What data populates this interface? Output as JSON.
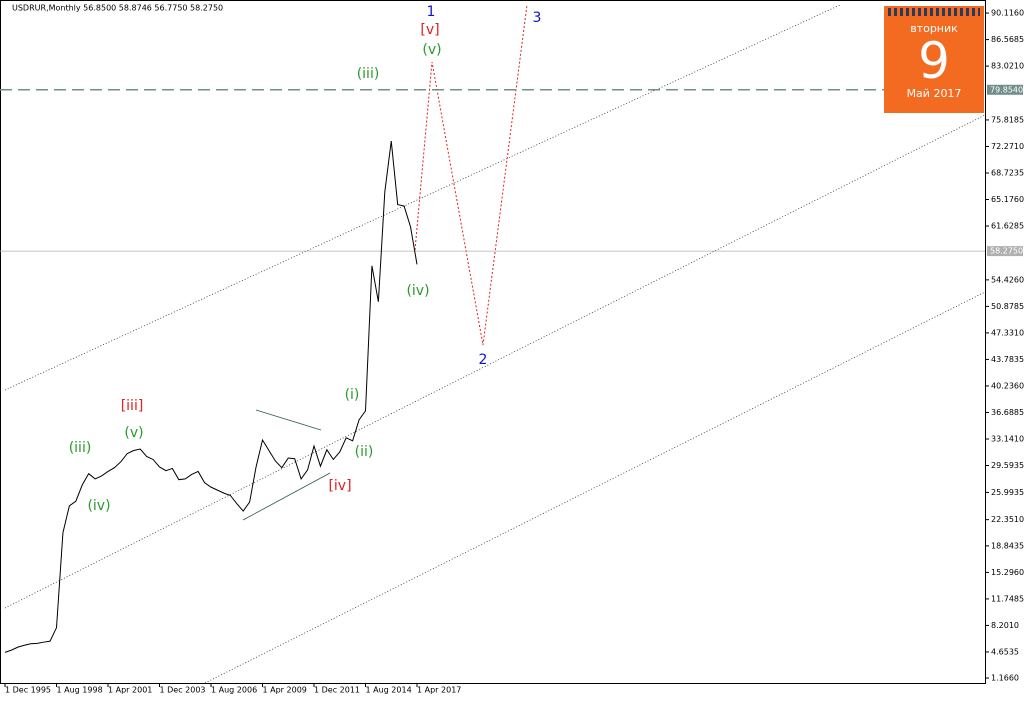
{
  "chart_data": {
    "type": "line",
    "title": "USDRUR,Monthly  56.8500 58.8746 56.7750 58.2750",
    "color": "#000000",
    "categories": [
      "1 Dec 1995",
      null,
      null,
      null,
      null,
      null,
      null,
      null,
      "1 Aug 1998",
      null,
      null,
      null,
      null,
      null,
      null,
      null,
      "1 Apr 2001",
      null,
      null,
      null,
      null,
      null,
      null,
      null,
      "1 Dec 2003",
      null,
      null,
      null,
      null,
      null,
      null,
      null,
      "1 Aug 2006",
      null,
      null,
      null,
      null,
      null,
      null,
      null,
      "1 Apr 2009",
      null,
      null,
      null,
      null,
      null,
      null,
      null,
      "1 Dec 2011",
      null,
      null,
      null,
      null,
      null,
      null,
      null,
      "1 Aug 2014",
      null,
      null,
      null,
      null,
      null,
      null,
      null,
      "1 Apr 2017"
    ],
    "values": [
      4.6,
      4.9,
      5.3,
      5.55,
      5.75,
      5.8,
      5.96,
      6.1,
      7.9,
      20.6,
      24.2,
      24.8,
      27.0,
      28.5,
      27.8,
      28.2,
      28.8,
      29.3,
      30.1,
      31.2,
      31.6,
      31.8,
      30.8,
      30.4,
      29.4,
      28.9,
      29.2,
      27.7,
      27.8,
      28.4,
      28.8,
      27.3,
      26.7,
      26.3,
      25.9,
      25.6,
      24.5,
      23.5,
      24.7,
      29.4,
      33.0,
      31.6,
      30.2,
      29.3,
      30.6,
      30.5,
      27.8,
      29.0,
      32.2,
      29.5,
      31.7,
      30.4,
      31.4,
      33.3,
      32.9,
      35.7,
      36.9,
      56.3,
      51.5,
      66.2,
      73.0,
      64.5,
      64.3,
      61.5,
      56.5
    ],
    "ylim": [
      0.5,
      91.73
    ],
    "yticks": [
      {
        "value": 90.116,
        "label": "90.1160"
      },
      {
        "value": 86.5685,
        "label": "86.5685"
      },
      {
        "value": 83.021,
        "label": "83.0210"
      },
      {
        "value": 75.8185,
        "label": "75.8185"
      },
      {
        "value": 72.271,
        "label": "72.2710"
      },
      {
        "value": 68.7235,
        "label": "68.7235"
      },
      {
        "value": 65.176,
        "label": "65.1760"
      },
      {
        "value": 61.6285,
        "label": "61.6285"
      },
      {
        "value": 54.426,
        "label": "54.4260"
      },
      {
        "value": 50.8785,
        "label": "50.8785"
      },
      {
        "value": 47.331,
        "label": "47.3310"
      },
      {
        "value": 43.7835,
        "label": "43.7835"
      },
      {
        "value": 40.236,
        "label": "40.2360"
      },
      {
        "value": 36.6885,
        "label": "36.6885"
      },
      {
        "value": 33.141,
        "label": "33.1410"
      },
      {
        "value": 29.5935,
        "label": "29.5935"
      },
      {
        "value": 25.9935,
        "label": "25.9935"
      },
      {
        "value": 22.351,
        "label": "22.3510"
      },
      {
        "value": 18.8435,
        "label": "18.8435"
      },
      {
        "value": 15.296,
        "label": "15.2960"
      },
      {
        "value": 11.7485,
        "label": "11.7485"
      },
      {
        "value": 8.201,
        "label": "8.2010"
      },
      {
        "value": 4.6535,
        "label": "4.6535"
      },
      {
        "value": 1.166,
        "label": "1.1660"
      }
    ],
    "hlines": [
      {
        "value": 79.854,
        "label": "79.8540",
        "color": "#6f8f8a"
      },
      {
        "value": 58.275,
        "label": "58.2750",
        "color": "#b0b0b0"
      }
    ],
    "annotations": [
      {
        "text": "1",
        "color": "#1010d0"
      },
      {
        "text": "[v]",
        "color": "#e02020"
      },
      {
        "text": "(v)",
        "color": "#2a9a2a"
      },
      {
        "text": "3",
        "color": "#1010d0"
      },
      {
        "text": "(iii)",
        "color": "#2a9a2a"
      },
      {
        "text": "2",
        "color": "#1010d0"
      },
      {
        "text": "(iv)",
        "color": "#2a9a2a"
      },
      {
        "text": "[iii]",
        "color": "#e02020"
      },
      {
        "text": "(v)",
        "color": "#2a9a2a"
      },
      {
        "text": "(iii)",
        "color": "#2a9a2a"
      },
      {
        "text": "(iv)",
        "color": "#2a9a2a"
      },
      {
        "text": "(i)",
        "color": "#2a9a2a"
      },
      {
        "text": "(ii)",
        "color": "#2a9a2a"
      },
      {
        "text": "[iv]",
        "color": "#e02020"
      }
    ]
  },
  "calendar": {
    "weekday": "вторник",
    "day": "9",
    "month": "Май 2017"
  }
}
